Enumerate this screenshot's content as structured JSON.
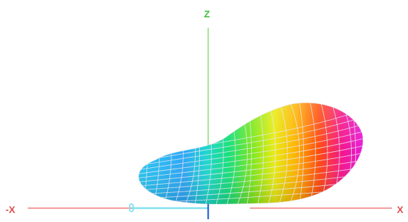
{
  "axes": {
    "z_label": "Z",
    "x_neg_label": "-X",
    "x_pos_label": "X"
  },
  "colors": {
    "z_axis": "#7fd96a",
    "z_label": "#3fbf3f",
    "x_axis": "#f07a7a",
    "x_label": "#e05050",
    "y_axis": "#7fe0f0",
    "axis_tick": "#2a6ad8",
    "mesh": "#e8e8ef"
  },
  "surface_gradient": [
    "#26c6f0",
    "#2ab8f4",
    "#2ea6f8",
    "#1ed7d0",
    "#18e07a",
    "#7ae820",
    "#e8ec10",
    "#ffb000",
    "#ff4a10",
    "#f5158a",
    "#e81ae0"
  ]
}
